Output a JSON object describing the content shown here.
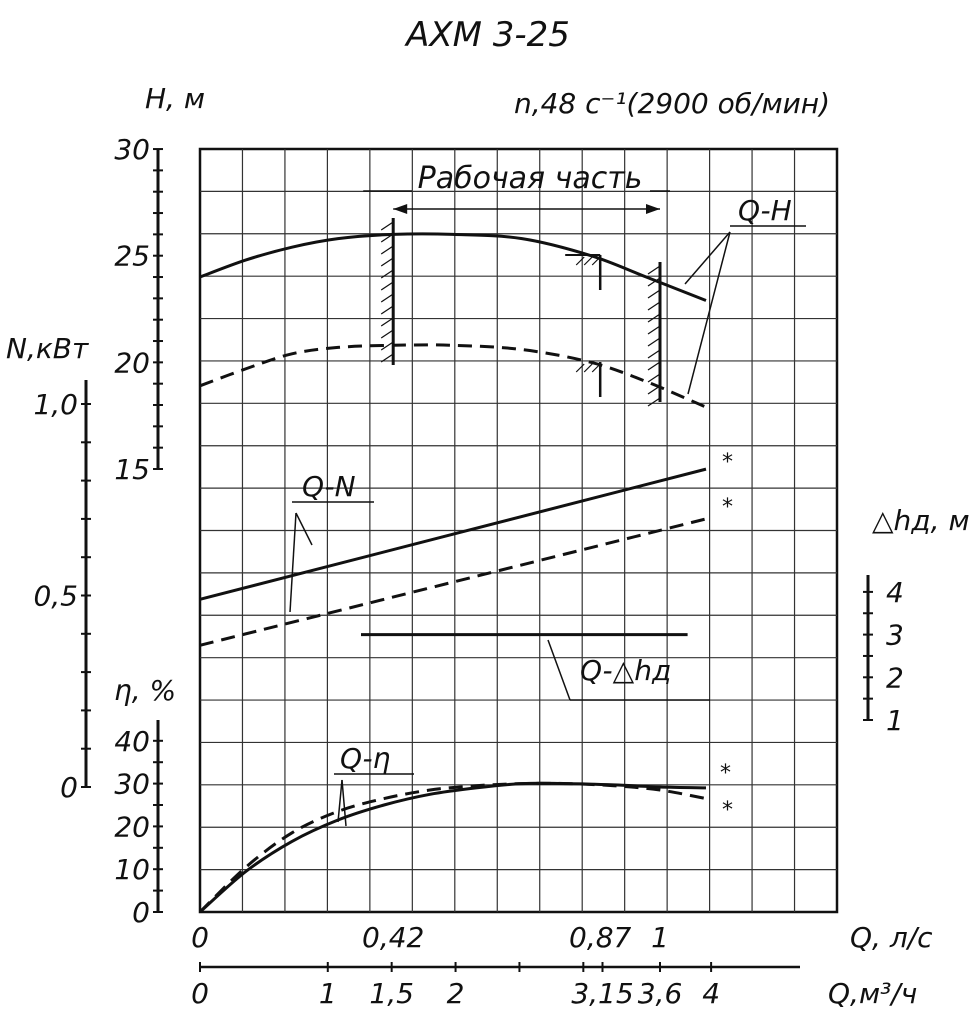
{
  "chart_data": {
    "type": "line",
    "title": "АХМ 3-25",
    "speed_label": "n,48 с⁻¹(2900 об/мин)",
    "working_range_label": "Рабочая часть",
    "working_range": {
      "q_from": 0.42,
      "q_to": 1.0
    },
    "x_axes": {
      "primary": {
        "label": "Q, л/с",
        "ticks": [
          "0",
          "0,42",
          "0,87",
          "1"
        ],
        "values": [
          0,
          0.42,
          0.87,
          1.0
        ],
        "range": [
          0,
          1.4
        ]
      },
      "secondary": {
        "label": "Q,м³/ч",
        "ticks": [
          "0",
          "1",
          "1,5",
          "2",
          "3,15",
          "3,6",
          "4"
        ],
        "values": [
          0,
          1,
          1.5,
          2,
          3.15,
          3.6,
          4
        ]
      }
    },
    "y_axes": [
      {
        "id": "H",
        "label": "Н, м",
        "ticks": [
          "30",
          "25",
          "20",
          "15"
        ],
        "values": [
          30,
          25,
          20,
          15
        ],
        "range": [
          15,
          30
        ]
      },
      {
        "id": "N",
        "label": "N,кВт",
        "ticks": [
          "1,0",
          "0,5",
          "0"
        ],
        "values": [
          1.0,
          0.5,
          0
        ],
        "range": [
          0,
          1.0
        ]
      },
      {
        "id": "eta",
        "label": "η, %",
        "ticks": [
          "40",
          "30",
          "20",
          "10",
          "0"
        ],
        "values": [
          40,
          30,
          20,
          10,
          0
        ],
        "range": [
          0,
          40
        ]
      },
      {
        "id": "dh",
        "label": "△hд, м",
        "ticks": [
          "4",
          "3",
          "2",
          "1"
        ],
        "values": [
          4,
          3,
          2,
          1
        ],
        "range": [
          1,
          4
        ]
      }
    ],
    "series": [
      {
        "name": "Q-H",
        "axis": "H",
        "style": "solid",
        "x": [
          0,
          0.1,
          0.2,
          0.3,
          0.42,
          0.55,
          0.7,
          0.85,
          0.97,
          1.1
        ],
        "y": [
          24.0,
          24.8,
          25.4,
          25.8,
          26.0,
          26.0,
          25.8,
          25.0,
          24.0,
          22.9
        ]
      },
      {
        "name": "",
        "axis": "H",
        "style": "dashed",
        "x": [
          0,
          0.1,
          0.2,
          0.3,
          0.42,
          0.55,
          0.7,
          0.85,
          0.97,
          1.1
        ],
        "y": [
          18.9,
          19.7,
          20.4,
          20.7,
          20.8,
          20.8,
          20.6,
          20.0,
          19.1,
          17.9
        ]
      },
      {
        "name": "Q-N",
        "axis": "N",
        "style": "solid",
        "x": [
          0,
          1.1
        ],
        "y": [
          0.49,
          0.83
        ]
      },
      {
        "name": "",
        "axis": "N",
        "style": "dashed",
        "x": [
          0,
          1.1
        ],
        "y": [
          0.37,
          0.7
        ]
      },
      {
        "name": "Q-△hд",
        "axis": "dh",
        "style": "solid",
        "x": [
          0.35,
          1.06
        ],
        "y": [
          3.0,
          3.0
        ]
      },
      {
        "name": "Q-η",
        "axis": "eta",
        "style": "solid",
        "x": [
          0,
          0.1,
          0.2,
          0.3,
          0.4,
          0.5,
          0.6,
          0.7,
          0.8,
          0.9,
          1.0,
          1.1
        ],
        "y": [
          0,
          9.5,
          16.5,
          21.5,
          25.0,
          27.5,
          29.0,
          30.0,
          30.0,
          29.7,
          29.2,
          29.0
        ]
      },
      {
        "name": "",
        "axis": "eta",
        "style": "dashed",
        "x": [
          0,
          0.1,
          0.2,
          0.3,
          0.4,
          0.5,
          0.6,
          0.7,
          0.8,
          0.9,
          1.0,
          1.1
        ],
        "y": [
          0,
          10.5,
          18.5,
          23.5,
          26.5,
          28.5,
          29.5,
          30.0,
          30.0,
          29.5,
          28.5,
          26.5
        ]
      }
    ],
    "markers": [
      "*",
      "*",
      "*",
      "*"
    ],
    "grid": true
  }
}
